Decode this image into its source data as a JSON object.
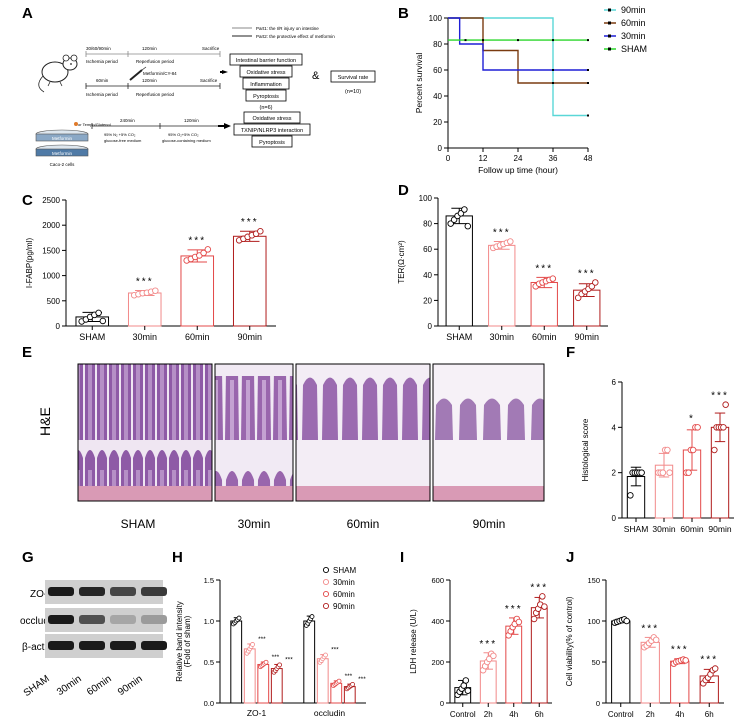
{
  "panel_letters": {
    "A": "A",
    "B": "B",
    "C": "C",
    "D": "D",
    "E": "E",
    "F": "F",
    "G": "G",
    "H": "H",
    "I": "I",
    "J": "J"
  },
  "schematic": {
    "legend_part1": "Part1: the I/R injury on intestine",
    "legend_part2": "Part2: the protective effect of metformin",
    "row1_times": "30/60/90min",
    "row1_reperf_time": "120min",
    "row1_sacrifice": "Sacrifice",
    "row1_ischemia": "Ischemia period",
    "row1_reperfusion": "Reperfusion period",
    "row2_time": "60min",
    "row2_drug": "Metformin/CY-84",
    "row2_reperf_time": "120min",
    "row2_sacrifice": "Sacrifice",
    "row2_ischemia": "Ischemia period",
    "row2_reperfusion": "Reperfusion period",
    "outcome_boxes": [
      "Intestinal barrier function",
      "Oxidative stress",
      "Inflammation",
      "Pyroptosis"
    ],
    "n_outcomes": "(n=6)",
    "ampersand": "&",
    "survival_label": "Survival rate",
    "n_survival": "(n=10)",
    "cell_drug": "or Tempo/Glutenol",
    "dish1": "Metformin",
    "dish2": "Metformin",
    "cell_line": "Caco-2 cells",
    "cell_time1": "240min",
    "cell_time2": "120min",
    "cell_cond1a": "95% N₂ +5% CO₂",
    "cell_cond1b": "glucose-free medium",
    "cell_cond2a": "95% O₂+5% CO₂",
    "cell_cond2b": "glucose-containing medium",
    "cell_outcomes": [
      "Oxidative stress",
      "TXNIP/NLRP3 interaction",
      "Pyroptosis"
    ]
  },
  "histology": {
    "stain_label": "H&E",
    "labels": [
      "SHAM",
      "30min",
      "60min",
      "90min"
    ],
    "colors": {
      "tissue": "#8e5aa6",
      "lumen": "#efe6f2",
      "muscle": "#d99ab5"
    }
  },
  "western": {
    "rows": [
      "ZO-1",
      "occludin",
      "β-actin"
    ],
    "lanes": [
      "SHAM",
      "30min",
      "60min",
      "90min"
    ],
    "intensity": [
      [
        0.95,
        0.9,
        0.75,
        0.8
      ],
      [
        0.95,
        0.7,
        0.3,
        0.35
      ],
      [
        0.95,
        0.95,
        0.95,
        0.95
      ]
    ]
  },
  "colors": {
    "sham": "#000000",
    "m30": "#f28a8a",
    "m60": "#e34848",
    "m90": "#b01c1c",
    "g90": "#5ad7d7",
    "g60": "#7a3b10",
    "g30": "#1f1fd6",
    "gsham": "#2bd62b"
  },
  "chart_data": [
    {
      "id": "B",
      "type": "line",
      "step": true,
      "xlabel": "Follow up time (hour)",
      "ylabel": "Percent survival",
      "xlim": [
        0,
        48
      ],
      "ylim": [
        0,
        100
      ],
      "xticks": [
        0,
        12,
        24,
        36,
        48
      ],
      "yticks": [
        0,
        20,
        40,
        60,
        80,
        100
      ],
      "series": [
        {
          "name": "90min",
          "color": "#5ad7d7",
          "x": [
            0,
            36,
            36,
            48
          ],
          "y": [
            100,
            100,
            25,
            25
          ],
          "censor": [
            48
          ]
        },
        {
          "name": "60min",
          "color": "#7a3b10",
          "x": [
            0,
            12,
            12,
            24,
            24,
            48
          ],
          "y": [
            100,
            100,
            75,
            75,
            50,
            50
          ],
          "censor": [
            36,
            48
          ]
        },
        {
          "name": "30min",
          "color": "#1f1fd6",
          "x": [
            0,
            4,
            4,
            12,
            12,
            48
          ],
          "y": [
            100,
            100,
            80,
            80,
            60,
            60
          ],
          "censor": [
            36,
            48
          ]
        },
        {
          "name": "SHAM",
          "color": "#2bd62b",
          "x": [
            0,
            48
          ],
          "y": [
            83,
            83
          ],
          "censor": [
            6,
            12,
            24,
            36,
            48
          ]
        }
      ]
    },
    {
      "id": "C",
      "type": "bar",
      "ylabel": "I-FABP(pg/ml)",
      "categories": [
        "SHAM",
        "30min",
        "60min",
        "90min"
      ],
      "values": [
        180,
        655,
        1390,
        1780
      ],
      "sd": [
        90,
        50,
        120,
        100
      ],
      "points": [
        [
          90,
          130,
          180,
          220,
          260,
          100
        ],
        [
          610,
          630,
          650,
          660,
          680,
          700
        ],
        [
          1300,
          1330,
          1370,
          1400,
          1450,
          1520
        ],
        [
          1700,
          1730,
          1770,
          1800,
          1830,
          1880
        ]
      ],
      "sig": [
        "",
        "***",
        "***",
        "***"
      ],
      "ylim": [
        0,
        2500
      ],
      "yticks": [
        0,
        500,
        1000,
        1500,
        2000,
        2500
      ]
    },
    {
      "id": "D",
      "type": "bar",
      "ylabel": "TER(Ω·cm²)",
      "categories": [
        "SHAM",
        "30min",
        "60min",
        "90min"
      ],
      "values": [
        86,
        63,
        34,
        28
      ],
      "sd": [
        6,
        3,
        4,
        5
      ],
      "points": [
        [
          80,
          83,
          86,
          88,
          91,
          78
        ],
        [
          61,
          62,
          63,
          64,
          65,
          66
        ],
        [
          31,
          33,
          34,
          35,
          36,
          37
        ],
        [
          22,
          25,
          27,
          29,
          31,
          34
        ]
      ],
      "sig": [
        "",
        "***",
        "***",
        "***"
      ],
      "ylim": [
        0,
        100
      ],
      "yticks": [
        0,
        20,
        40,
        60,
        80,
        100
      ]
    },
    {
      "id": "F",
      "type": "bar",
      "ylabel": "Histological score",
      "categories": [
        "SHAM",
        "30min",
        "60min",
        "90min"
      ],
      "values": [
        1.83,
        2.33,
        3.0,
        4.0
      ],
      "sd": [
        0.41,
        0.52,
        0.89,
        0.63
      ],
      "points": [
        [
          1,
          2,
          2,
          2,
          2,
          2
        ],
        [
          2,
          2,
          2,
          3,
          3,
          2
        ],
        [
          2,
          2,
          3,
          3,
          4,
          4
        ],
        [
          3,
          4,
          4,
          4,
          4,
          5
        ]
      ],
      "sig": [
        "",
        "",
        "*",
        "***"
      ],
      "ylim": [
        0,
        6
      ],
      "yticks": [
        0,
        2,
        4,
        6
      ]
    },
    {
      "id": "H",
      "type": "bar",
      "ylabel": "Relative band intensity\n(Fold of sham)",
      "categories": [
        "ZO-1",
        "occludin"
      ],
      "series": [
        {
          "name": "SHAM",
          "values": [
            1.0,
            1.0
          ],
          "sd": [
            0.04,
            0.06
          ],
          "sig": [
            "",
            ""
          ]
        },
        {
          "name": "30min",
          "values": [
            0.66,
            0.54
          ],
          "sd": [
            0.06,
            0.05
          ],
          "sig": [
            "***",
            "***"
          ]
        },
        {
          "name": "60min",
          "values": [
            0.47,
            0.24
          ],
          "sd": [
            0.03,
            0.03
          ],
          "sig": [
            "***",
            "***"
          ]
        },
        {
          "name": "90min",
          "values": [
            0.42,
            0.2
          ],
          "sd": [
            0.05,
            0.03
          ],
          "sig": [
            "***",
            "***"
          ]
        }
      ],
      "ylim": [
        0,
        1.5
      ],
      "yticks": [
        0.0,
        0.5,
        1.0,
        1.5
      ]
    },
    {
      "id": "I",
      "type": "bar",
      "ylabel": "LDH release (U/L)",
      "categories": [
        "Control",
        "2h",
        "4h",
        "6h"
      ],
      "values": [
        75,
        205,
        375,
        465
      ],
      "sd": [
        35,
        40,
        40,
        50
      ],
      "points": [
        [
          40,
          55,
          70,
          85,
          110,
          60
        ],
        [
          160,
          180,
          200,
          215,
          240,
          230
        ],
        [
          330,
          350,
          370,
          385,
          410,
          395
        ],
        [
          410,
          440,
          460,
          480,
          520,
          470
        ]
      ],
      "sig": [
        "",
        "***",
        "***",
        "***"
      ],
      "ylim": [
        0,
        600
      ],
      "yticks": [
        0,
        200,
        400,
        600
      ]
    },
    {
      "id": "J",
      "type": "bar",
      "ylabel": "Cell viability(% of control)",
      "categories": [
        "Control",
        "2h",
        "4h",
        "6h"
      ],
      "values": [
        100,
        74,
        51,
        33
      ],
      "sd": [
        2,
        6,
        3,
        8
      ],
      "points": [
        [
          98,
          99,
          100,
          101,
          102,
          100
        ],
        [
          68,
          70,
          73,
          76,
          80,
          77
        ],
        [
          48,
          50,
          51,
          52,
          53,
          52
        ],
        [
          24,
          28,
          31,
          35,
          40,
          42
        ]
      ],
      "sig": [
        "",
        "***",
        "***",
        "***"
      ],
      "ylim": [
        0,
        150
      ],
      "yticks": [
        0,
        50,
        100,
        150
      ]
    }
  ]
}
